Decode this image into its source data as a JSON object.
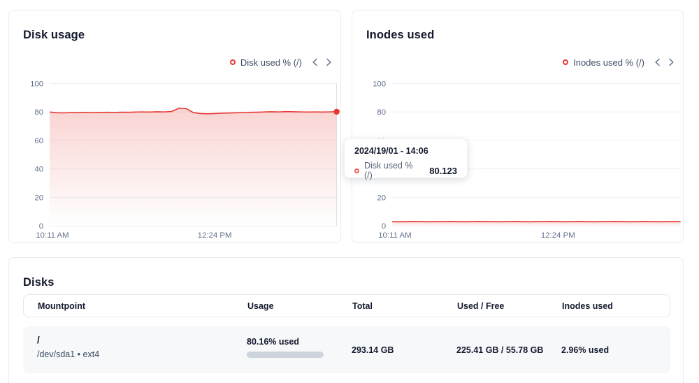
{
  "colors": {
    "accent_red": "#e73a33",
    "grid_line": "#edf0f5",
    "axis_label": "#60708c",
    "card_border": "#e8ebf2",
    "bar_track": "#cdd4dd",
    "bar_gradient": [
      "#2eb85c",
      "#dcc95a",
      "#f29e53",
      "#f2685a"
    ]
  },
  "cards": {
    "disk_usage": {
      "title": "Disk usage",
      "legend": {
        "label": "Disk used % (/)"
      }
    },
    "inodes_used": {
      "title": "Inodes used",
      "legend": {
        "label": "Inodes used % (/)"
      }
    }
  },
  "tooltip": {
    "timestamp": "2024/19/01 - 14:06",
    "series_label": "Disk used % (/)",
    "value": "80.123"
  },
  "disks_table": {
    "title": "Disks",
    "columns": [
      "Mountpoint",
      "Usage",
      "Total",
      "Used / Free",
      "Inodes used"
    ],
    "rows": [
      {
        "mountpoint": "/",
        "device": "/dev/sda1 • ext4",
        "usage_label": "80.16% used",
        "usage_percent": 80.16,
        "total": "293.14 GB",
        "used_free": "225.41 GB / 55.78 GB",
        "inodes_used": "2.96% used"
      }
    ]
  },
  "chart_data": [
    {
      "type": "area",
      "title": "Disk usage",
      "series": [
        {
          "name": "Disk used % (/)",
          "values": [
            79.9,
            79.4,
            79.3,
            79.5,
            79.4,
            79.6,
            79.5,
            79.6,
            79.7,
            79.6,
            79.8,
            79.7,
            79.9,
            80.0,
            79.9,
            80.1,
            80.0,
            80.3,
            82.6,
            82.4,
            79.6,
            78.9,
            78.7,
            78.9,
            79.1,
            79.2,
            79.4,
            79.5,
            79.7,
            79.8,
            80.0,
            80.1,
            80.0,
            80.2,
            80.1,
            80.0,
            79.9,
            80.0,
            79.9,
            80.0,
            80.123
          ]
        }
      ],
      "x_ticks": [
        "10:11 AM",
        "12:24 PM"
      ],
      "y_ticks": [
        100,
        80,
        60,
        40,
        20,
        0
      ],
      "ylim": [
        0,
        100
      ],
      "grid": true,
      "legend_position": "top-right",
      "color": "#e73a33",
      "hover_point": {
        "x_label": "2024/19/01 - 14:06",
        "value": 80.123
      }
    },
    {
      "type": "area",
      "title": "Inodes used",
      "series": [
        {
          "name": "Inodes used % (/)",
          "values": [
            3.0,
            2.9,
            3.0,
            3.1,
            3.0,
            2.9,
            3.0,
            3.0,
            3.1,
            3.0,
            2.9,
            3.0,
            3.1,
            3.0,
            3.0,
            2.9,
            3.0,
            3.1,
            3.0,
            2.9,
            3.0,
            3.0,
            3.1,
            3.0,
            2.9,
            3.0,
            3.1,
            3.0,
            2.9,
            3.0,
            3.0,
            3.1,
            3.0,
            2.9,
            3.0,
            3.1,
            3.0,
            2.9,
            3.0,
            3.0,
            2.96
          ]
        }
      ],
      "x_ticks": [
        "10:11 AM",
        "12:24 PM"
      ],
      "y_ticks": [
        100,
        80,
        60,
        40,
        20,
        0
      ],
      "ylim": [
        0,
        100
      ],
      "grid": true,
      "legend_position": "top-right",
      "color": "#e73a33"
    }
  ]
}
